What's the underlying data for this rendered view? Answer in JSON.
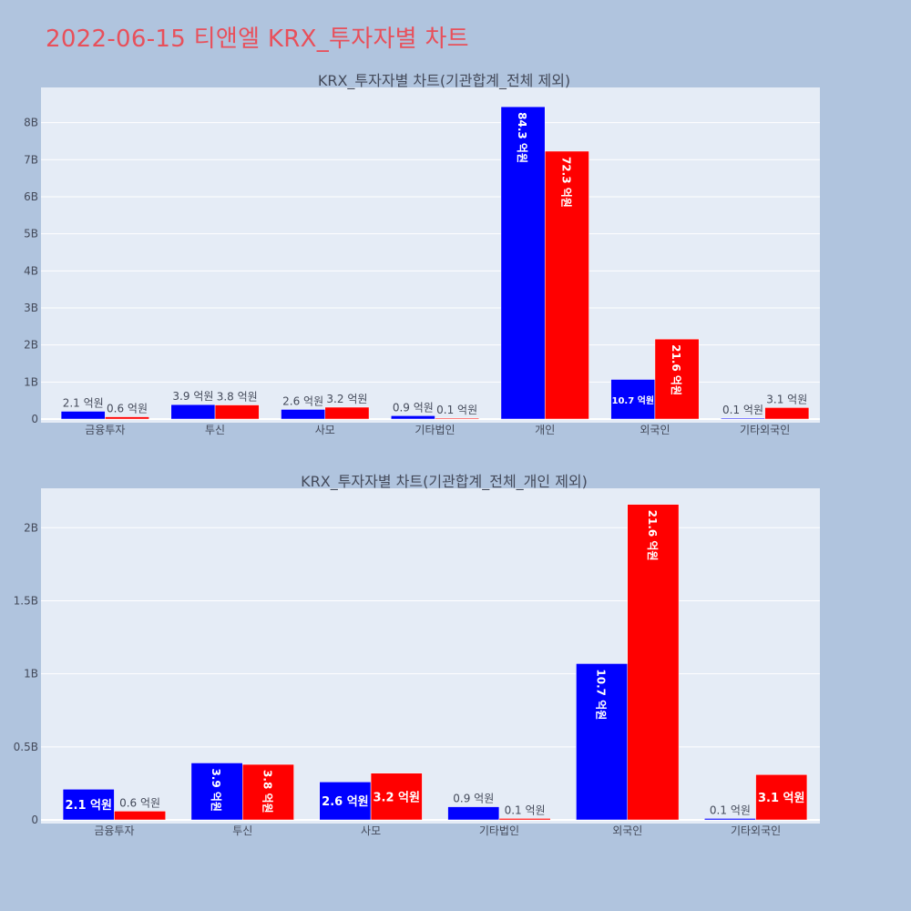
{
  "page": {
    "title": "2022-06-15 티앤엘 KRX_투자자별 차트"
  },
  "colors": {
    "background": "#b0c4de",
    "plot_bg": "#e5ecf6",
    "series_a": "#0000ff",
    "series_b": "#ff0000",
    "title": "#e8505b"
  },
  "chart_data": [
    {
      "type": "bar",
      "title": "KRX_투자자별 차트(기관합계_전체 제외)",
      "categories": [
        "금융투자",
        "투신",
        "사모",
        "기타법인",
        "개인",
        "외국인",
        "기타외국인"
      ],
      "series": [
        {
          "values": [
            0.21,
            0.39,
            0.26,
            0.09,
            8.43,
            1.07,
            0.01
          ],
          "labels": [
            "2.1 억원",
            "3.9 억원",
            "2.6 억원",
            "0.9 억원",
            "84.3 억원",
            "10.7 억원",
            "0.1 억원"
          ]
        },
        {
          "values": [
            0.06,
            0.38,
            0.32,
            0.01,
            7.23,
            2.16,
            0.31
          ],
          "labels": [
            "0.6 억원",
            "3.8 억원",
            "3.2 억원",
            "0.1 억원",
            "72.3 억원",
            "21.6 억원",
            "3.1 억원"
          ]
        }
      ],
      "yticks": [
        0,
        1,
        2,
        3,
        4,
        5,
        6,
        7,
        8
      ],
      "ytick_labels": [
        "0",
        "1B",
        "2B",
        "3B",
        "4B",
        "5B",
        "6B",
        "7B",
        "8B"
      ],
      "ylim": [
        0,
        8.95
      ],
      "grid": true
    },
    {
      "type": "bar",
      "title": "KRX_투자자별 차트(기관합계_전체_개인 제외)",
      "categories": [
        "금융투자",
        "투신",
        "사모",
        "기타법인",
        "외국인",
        "기타외국인"
      ],
      "series": [
        {
          "values": [
            0.21,
            0.39,
            0.26,
            0.09,
            1.07,
            0.01
          ],
          "labels": [
            "2.1 억원",
            "3.9 억원",
            "2.6 억원",
            "0.9 억원",
            "10.7 억원",
            "0.1 억원"
          ]
        },
        {
          "values": [
            0.06,
            0.38,
            0.32,
            0.01,
            2.16,
            0.31
          ],
          "labels": [
            "0.6 억원",
            "3.8 억원",
            "3.2 억원",
            "0.1 억원",
            "21.6 억원",
            "3.1 억원"
          ]
        }
      ],
      "yticks": [
        0,
        0.5,
        1,
        1.5,
        2
      ],
      "ytick_labels": [
        "0",
        "0.5B",
        "1B",
        "1.5B",
        "2B"
      ],
      "ylim": [
        0,
        2.27
      ],
      "grid": true
    }
  ]
}
